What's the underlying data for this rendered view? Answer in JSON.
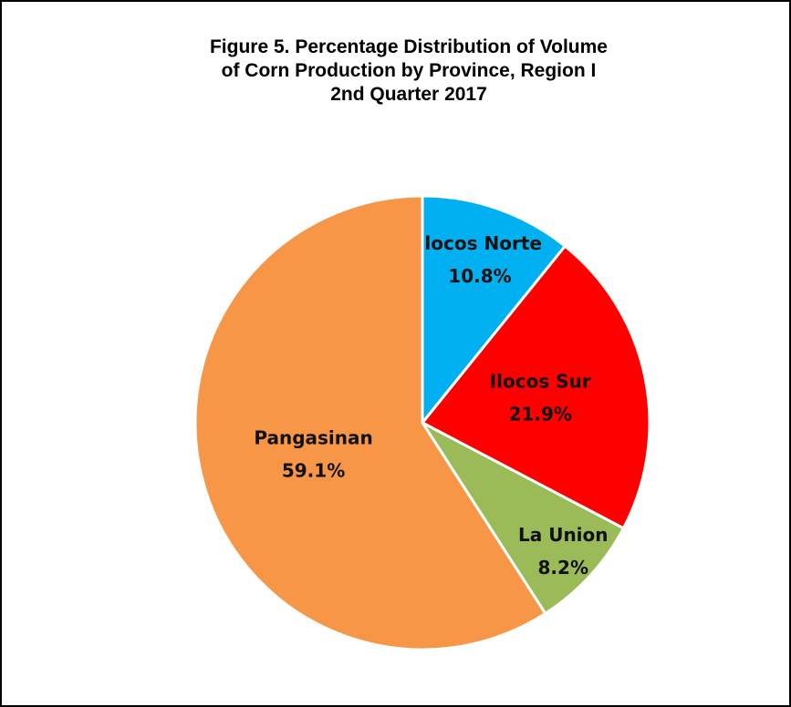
{
  "chart_data": {
    "type": "pie",
    "title": [
      "Figure 5. Percentage Distribution of Volume",
      "of Corn Production by Province, Region I",
      "2nd Quarter 2017"
    ],
    "categories": [
      "Ilocos Norte",
      "Ilocos Sur",
      "La Union",
      "Pangasinan"
    ],
    "values": [
      10.8,
      21.9,
      8.2,
      59.1
    ],
    "value_labels": [
      "10.8%",
      "21.9%",
      "8.2%",
      "59.1%"
    ],
    "colors": [
      "#00b0f0",
      "#ff0000",
      "#9bbb59",
      "#f79646"
    ]
  }
}
